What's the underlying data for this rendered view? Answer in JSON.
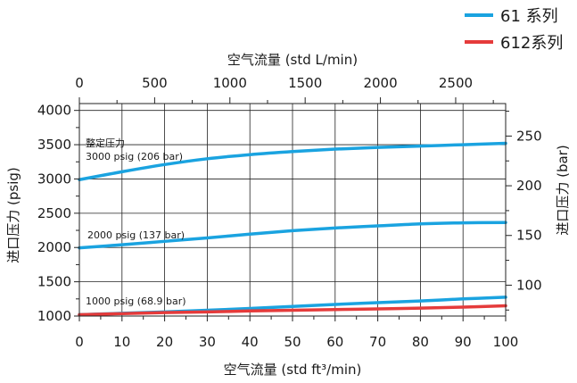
{
  "chart_data": {
    "type": "line",
    "legend": [
      {
        "name": "61 系列",
        "color": "#1aa3e0"
      },
      {
        "name": "612系列",
        "color": "#e53b3b"
      }
    ],
    "x_bottom": {
      "label": "空气流量 (std ft³/min)",
      "range": [
        0,
        100
      ],
      "ticks": [
        "0",
        "10",
        "20",
        "30",
        "40",
        "50",
        "60",
        "70",
        "80",
        "90",
        "100"
      ]
    },
    "x_top": {
      "label": "空气流量 (std L/min)",
      "range": [
        0,
        2832
      ],
      "ticks": [
        "0",
        "500",
        "1000",
        "1500",
        "2000",
        "2500"
      ]
    },
    "y_left": {
      "label": "进口压力 (psig)",
      "range": [
        1000,
        4100
      ],
      "ticks": [
        "1000",
        "1500",
        "2000",
        "2500",
        "3000",
        "3500",
        "4000"
      ]
    },
    "y_right": {
      "label": "进口压力 (bar)",
      "range": [
        68.95,
        282.68
      ],
      "ticks": [
        "100",
        "150",
        "200",
        "250"
      ]
    },
    "grid": true,
    "annotations": [
      {
        "text": "整定压力"
      },
      {
        "text": "3000 psig (206 bar)"
      },
      {
        "text": "2000 psig (137 bar)"
      },
      {
        "text": "1000 psig (68.9 bar)"
      }
    ],
    "series": [
      {
        "name": "61 系列",
        "set_label": "3000 psig (206 bar)",
        "color": "#1aa3e0",
        "x": [
          0,
          10,
          20,
          30,
          40,
          50,
          60,
          70,
          80,
          90,
          100
        ],
        "y": [
          2990,
          3105,
          3210,
          3295,
          3355,
          3400,
          3435,
          3460,
          3480,
          3500,
          3520
        ]
      },
      {
        "name": "61 系列",
        "set_label": "2000 psig (137 bar)",
        "color": "#1aa3e0",
        "x": [
          0,
          10,
          20,
          30,
          40,
          50,
          60,
          70,
          80,
          90,
          100
        ],
        "y": [
          1995,
          2040,
          2090,
          2140,
          2195,
          2245,
          2285,
          2315,
          2345,
          2360,
          2365
        ]
      },
      {
        "name": "61 系列",
        "set_label": "1000 psig (68.9 bar)",
        "color": "#1aa3e0",
        "x": [
          0,
          10,
          20,
          30,
          40,
          50,
          60,
          70,
          80,
          90,
          100
        ],
        "y": [
          1020,
          1040,
          1060,
          1085,
          1110,
          1140,
          1170,
          1195,
          1220,
          1250,
          1275
        ]
      },
      {
        "name": "612系列",
        "set_label": "1000 psig (68.9 bar)",
        "color": "#e53b3b",
        "x": [
          0,
          10,
          20,
          30,
          40,
          50,
          60,
          70,
          80,
          90,
          100
        ],
        "y": [
          1020,
          1035,
          1050,
          1060,
          1075,
          1085,
          1095,
          1105,
          1115,
          1130,
          1150
        ]
      }
    ]
  }
}
